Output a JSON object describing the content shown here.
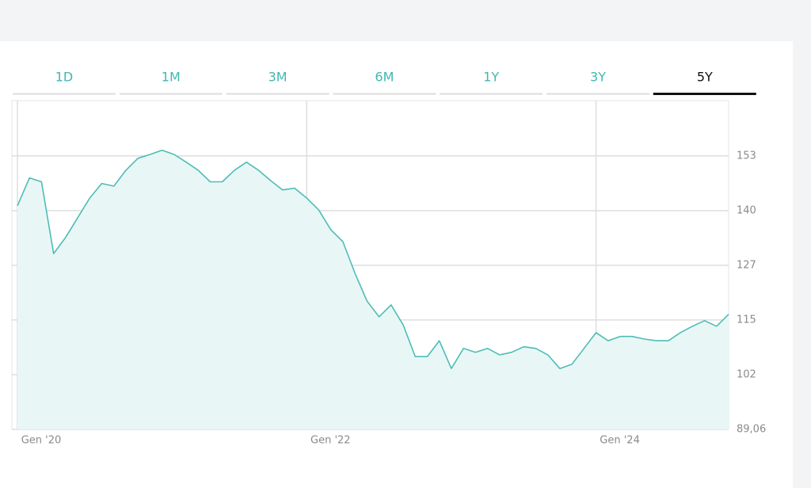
{
  "tabs": [
    {
      "label": "1D"
    },
    {
      "label": "1M"
    },
    {
      "label": "3M"
    },
    {
      "label": "6M"
    },
    {
      "label": "1Y"
    },
    {
      "label": "3Y"
    },
    {
      "label": "5Y",
      "selected": true
    }
  ],
  "chart_data": {
    "type": "line",
    "x": [
      "2020-01",
      "2020-02",
      "2020-03",
      "2020-04",
      "2020-05",
      "2020-06",
      "2020-07",
      "2020-08",
      "2020-09",
      "2020-10",
      "2020-11",
      "2020-12",
      "2021-01",
      "2021-02",
      "2021-03",
      "2021-04",
      "2021-05",
      "2021-06",
      "2021-07",
      "2021-08",
      "2021-09",
      "2021-10",
      "2021-11",
      "2021-12",
      "2022-01",
      "2022-02",
      "2022-03",
      "2022-04",
      "2022-05",
      "2022-06",
      "2022-07",
      "2022-08",
      "2022-09",
      "2022-10",
      "2022-11",
      "2022-12",
      "2023-01",
      "2023-02",
      "2023-03",
      "2023-04",
      "2023-05",
      "2023-06",
      "2023-07",
      "2023-08",
      "2023-09",
      "2023-10",
      "2023-11",
      "2023-12",
      "2024-01",
      "2024-02",
      "2024-03",
      "2024-04",
      "2024-05",
      "2024-06",
      "2024-07",
      "2024-08",
      "2024-09",
      "2024-10",
      "2024-11",
      "2024-12"
    ],
    "series": [
      {
        "color": "#4dbdb5",
        "fill": "#e8f7f6",
        "values": [
          141.4,
          147.9,
          147,
          130.2,
          134,
          138.6,
          143.2,
          146.6,
          146,
          149.7,
          152.5,
          153.4,
          154.4,
          153.4,
          151.6,
          149.7,
          147,
          147,
          149.7,
          151.6,
          149.7,
          147.3,
          145.1,
          145.5,
          143.2,
          140.4,
          135.8,
          133,
          125.6,
          119.1,
          115.4,
          118.2,
          113.5,
          106.1,
          106.1,
          109.8,
          103.3,
          108,
          107.1,
          108,
          106.5,
          107.1,
          108.4,
          108,
          106.5,
          103.3,
          104.3,
          108,
          111.7,
          109.8,
          110.8,
          110.8,
          110.2,
          109.8,
          109.8,
          111.7,
          113.2,
          114.5,
          113.2,
          116
        ]
      }
    ],
    "xlim": [
      "2020-01",
      "2024-12"
    ],
    "xticks": [
      {
        "value": "2020-01",
        "label": "Gen '20"
      },
      {
        "value": "2022-01",
        "label": "Gen '22"
      },
      {
        "value": "2024-01",
        "label": "Gen '24"
      }
    ],
    "ylim": [
      89.06,
      166
    ],
    "yticks": [
      {
        "value": 89.06,
        "label": "89,06"
      },
      {
        "value": 101.86,
        "label": "102"
      },
      {
        "value": 114.66,
        "label": "115"
      },
      {
        "value": 127.46,
        "label": "127"
      },
      {
        "value": 140.26,
        "label": "140"
      },
      {
        "value": 153.06,
        "label": "153"
      }
    ],
    "grid": true
  }
}
